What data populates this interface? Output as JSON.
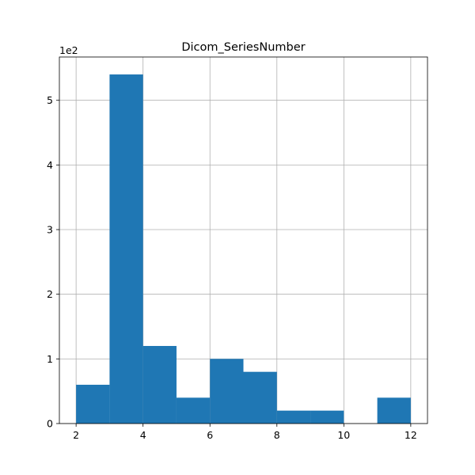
{
  "chart_data": {
    "type": "bar",
    "title": "Dicom_SeriesNumber",
    "xlabel": "",
    "ylabel": "",
    "y_offset_label": "1e2",
    "xlim": [
      1.5,
      12.5
    ],
    "ylim": [
      0,
      5.67
    ],
    "grid": true,
    "bar_color": "#1f77b4",
    "x_ticks": [
      {
        "value": 2,
        "label": "2"
      },
      {
        "value": 4,
        "label": "4"
      },
      {
        "value": 6,
        "label": "6"
      },
      {
        "value": 8,
        "label": "8"
      },
      {
        "value": 10,
        "label": "10"
      },
      {
        "value": 12,
        "label": "12"
      }
    ],
    "y_ticks": [
      {
        "value": 0,
        "label": "0"
      },
      {
        "value": 1,
        "label": "1"
      },
      {
        "value": 2,
        "label": "2"
      },
      {
        "value": 3,
        "label": "3"
      },
      {
        "value": 4,
        "label": "4"
      },
      {
        "value": 5,
        "label": "5"
      }
    ],
    "bins": [
      {
        "x0": 2,
        "x1": 3,
        "value": 0.6
      },
      {
        "x0": 3,
        "x1": 4,
        "value": 5.4
      },
      {
        "x0": 4,
        "x1": 5,
        "value": 1.2
      },
      {
        "x0": 5,
        "x1": 6,
        "value": 0.4
      },
      {
        "x0": 6,
        "x1": 7,
        "value": 1.0
      },
      {
        "x0": 7,
        "x1": 8,
        "value": 0.8
      },
      {
        "x0": 8,
        "x1": 9,
        "value": 0.2
      },
      {
        "x0": 9,
        "x1": 10,
        "value": 0.2
      },
      {
        "x0": 10,
        "x1": 11,
        "value": 0
      },
      {
        "x0": 11,
        "x1": 12,
        "value": 0.4
      }
    ]
  }
}
